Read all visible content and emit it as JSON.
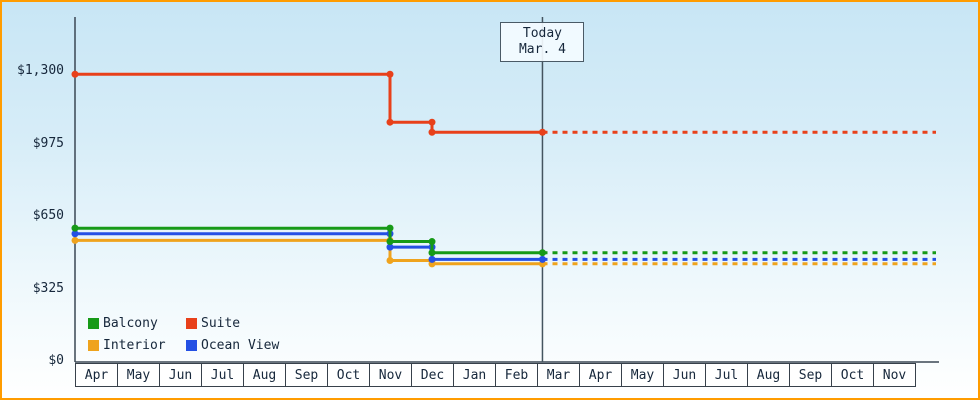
{
  "chart_data": {
    "type": "line",
    "x_months": [
      "Apr",
      "May",
      "Jun",
      "Jul",
      "Aug",
      "Sep",
      "Oct",
      "Nov",
      "Dec",
      "Jan",
      "Feb",
      "Mar",
      "Apr",
      "May",
      "Jun",
      "Jul",
      "Aug",
      "Sep",
      "Oct",
      "Nov"
    ],
    "y_ticks": [
      {
        "label": "$1,300",
        "value": 1300
      },
      {
        "label": "$975",
        "value": 975
      },
      {
        "label": "$650",
        "value": 650
      },
      {
        "label": "$325",
        "value": 325
      },
      {
        "label": "$0",
        "value": 0
      }
    ],
    "ylim": [
      0,
      1550
    ],
    "today": {
      "label": "Today",
      "date": "Mar. 4",
      "x_month_index": 11.13
    },
    "series": [
      {
        "name": "Interior",
        "color": "#efa31d",
        "history": [
          [
            0,
            545
          ],
          [
            7.5,
            545
          ],
          [
            7.5,
            455
          ],
          [
            8.5,
            455
          ],
          [
            8.5,
            440
          ],
          [
            11.13,
            440
          ]
        ],
        "forecast": [
          [
            11.13,
            440
          ],
          [
            20.5,
            440
          ]
        ]
      },
      {
        "name": "Ocean View",
        "color": "#2450e4",
        "history": [
          [
            0,
            575
          ],
          [
            7.5,
            575
          ],
          [
            7.5,
            515
          ],
          [
            8.5,
            515
          ],
          [
            8.5,
            460
          ],
          [
            11.13,
            460
          ]
        ],
        "forecast": [
          [
            11.13,
            460
          ],
          [
            20.5,
            460
          ]
        ]
      },
      {
        "name": "Balcony",
        "color": "#179a17",
        "history": [
          [
            0,
            600
          ],
          [
            7.5,
            600
          ],
          [
            7.5,
            540
          ],
          [
            8.5,
            540
          ],
          [
            8.5,
            490
          ],
          [
            11.13,
            490
          ]
        ],
        "forecast": [
          [
            11.13,
            490
          ],
          [
            20.5,
            490
          ]
        ]
      },
      {
        "name": "Suite",
        "color": "#e8401a",
        "history": [
          [
            0,
            1290
          ],
          [
            7.5,
            1290
          ],
          [
            7.5,
            1075
          ],
          [
            8.5,
            1075
          ],
          [
            8.5,
            1030
          ],
          [
            11.13,
            1030
          ]
        ],
        "forecast": [
          [
            11.13,
            1030
          ],
          [
            20.5,
            1030
          ]
        ]
      }
    ],
    "legend": [
      {
        "label": "Balcony",
        "color": "#179a17"
      },
      {
        "label": "Suite",
        "color": "#e8401a"
      },
      {
        "label": "Interior",
        "color": "#efa31d"
      },
      {
        "label": "Ocean View",
        "color": "#2450e4"
      }
    ],
    "frame_color": "#ff9c00"
  }
}
